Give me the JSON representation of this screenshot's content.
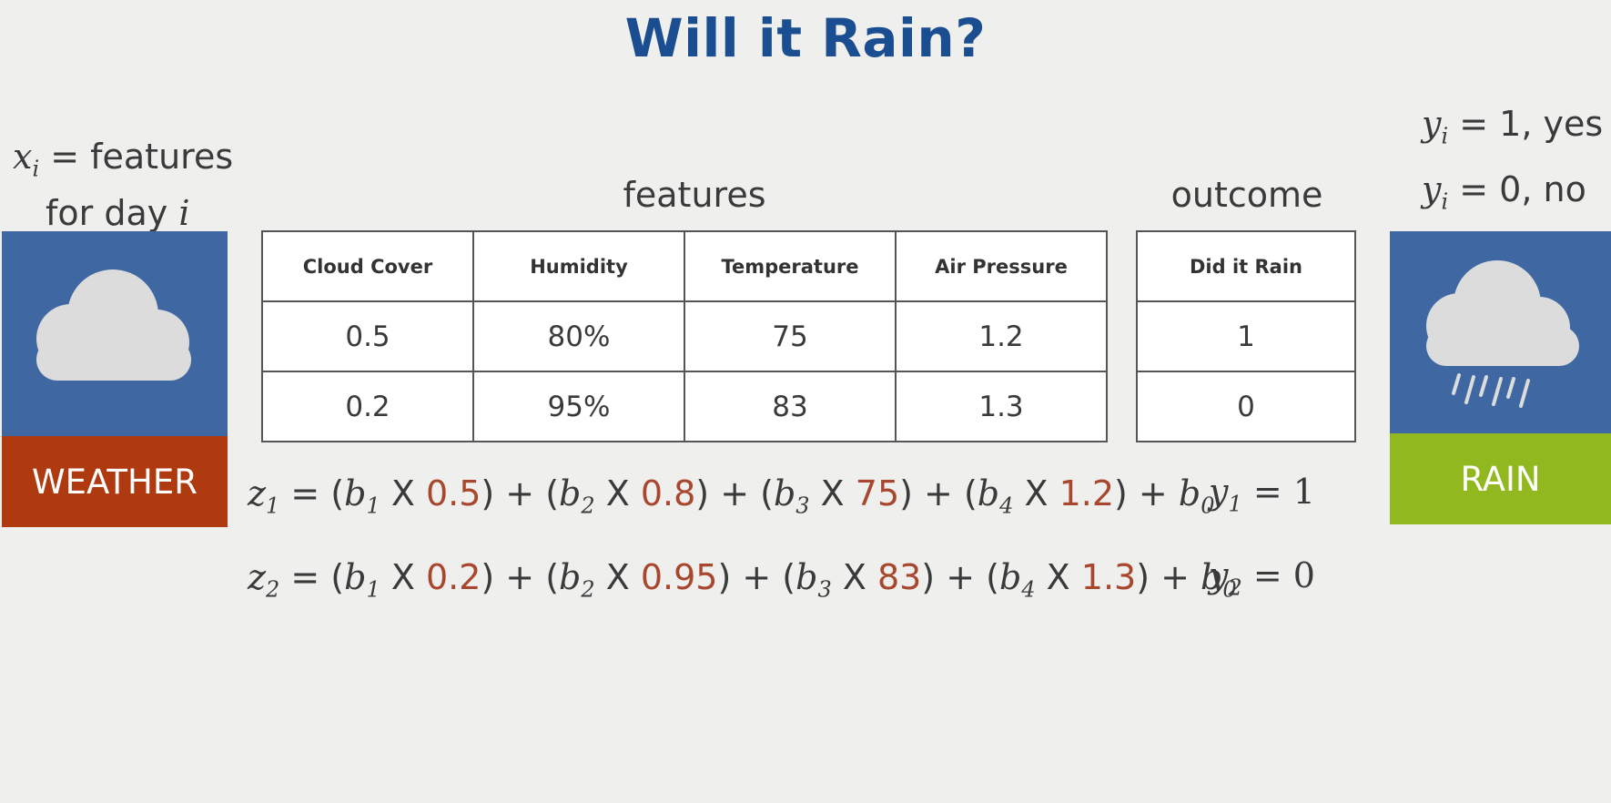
{
  "title": "Will it Rain?",
  "left_note": {
    "var": "x",
    "sub": "i",
    "line1_rest": "= features",
    "line2_text": "for day ",
    "line2_var": "i"
  },
  "right_note": {
    "var": "y",
    "sub": "i",
    "yes_text": "= 1, yes",
    "no_text": "= 0, no"
  },
  "headings": {
    "features": "features",
    "outcome": "outcome"
  },
  "weather_panel": {
    "label": "WEATHER",
    "icon": "cloud-icon",
    "colors": {
      "top": "#3f68a2",
      "bottom": "#b03a10"
    }
  },
  "rain_panel": {
    "label": "RAIN",
    "icon": "rain-cloud-icon",
    "colors": {
      "top": "#3f68a2",
      "bottom": "#92b820"
    }
  },
  "features_table": {
    "columns": [
      "Cloud Cover",
      "Humidity",
      "Temperature",
      "Air Pressure"
    ],
    "rows": [
      [
        "0.5",
        "80%",
        "75",
        "1.2"
      ],
      [
        "0.2",
        "95%",
        "83",
        "1.3"
      ]
    ]
  },
  "outcome_table": {
    "column": "Did it Rain",
    "rows": [
      "1",
      "0"
    ]
  },
  "equations": [
    {
      "lhs_var": "z",
      "lhs_sub": "1",
      "terms": [
        {
          "coef": "b",
          "coef_sub": "1",
          "value": "0.5"
        },
        {
          "coef": "b",
          "coef_sub": "2",
          "value": "0.8"
        },
        {
          "coef": "b",
          "coef_sub": "3",
          "value": "75"
        },
        {
          "coef": "b",
          "coef_sub": "4",
          "value": "1.2"
        }
      ],
      "bias": "b",
      "bias_sub": "0",
      "y_var": "y",
      "y_sub": "1",
      "y_val": "1"
    },
    {
      "lhs_var": "z",
      "lhs_sub": "2",
      "terms": [
        {
          "coef": "b",
          "coef_sub": "1",
          "value": "0.2"
        },
        {
          "coef": "b",
          "coef_sub": "2",
          "value": "0.95"
        },
        {
          "coef": "b",
          "coef_sub": "3",
          "value": "83"
        },
        {
          "coef": "b",
          "coef_sub": "4",
          "value": "1.3"
        }
      ],
      "bias": "b",
      "bias_sub": "0",
      "y_var": "y",
      "y_sub": "2",
      "y_val": "0"
    }
  ],
  "colors": {
    "title": "#1a4e90",
    "highlight_number": "#a8472e"
  }
}
